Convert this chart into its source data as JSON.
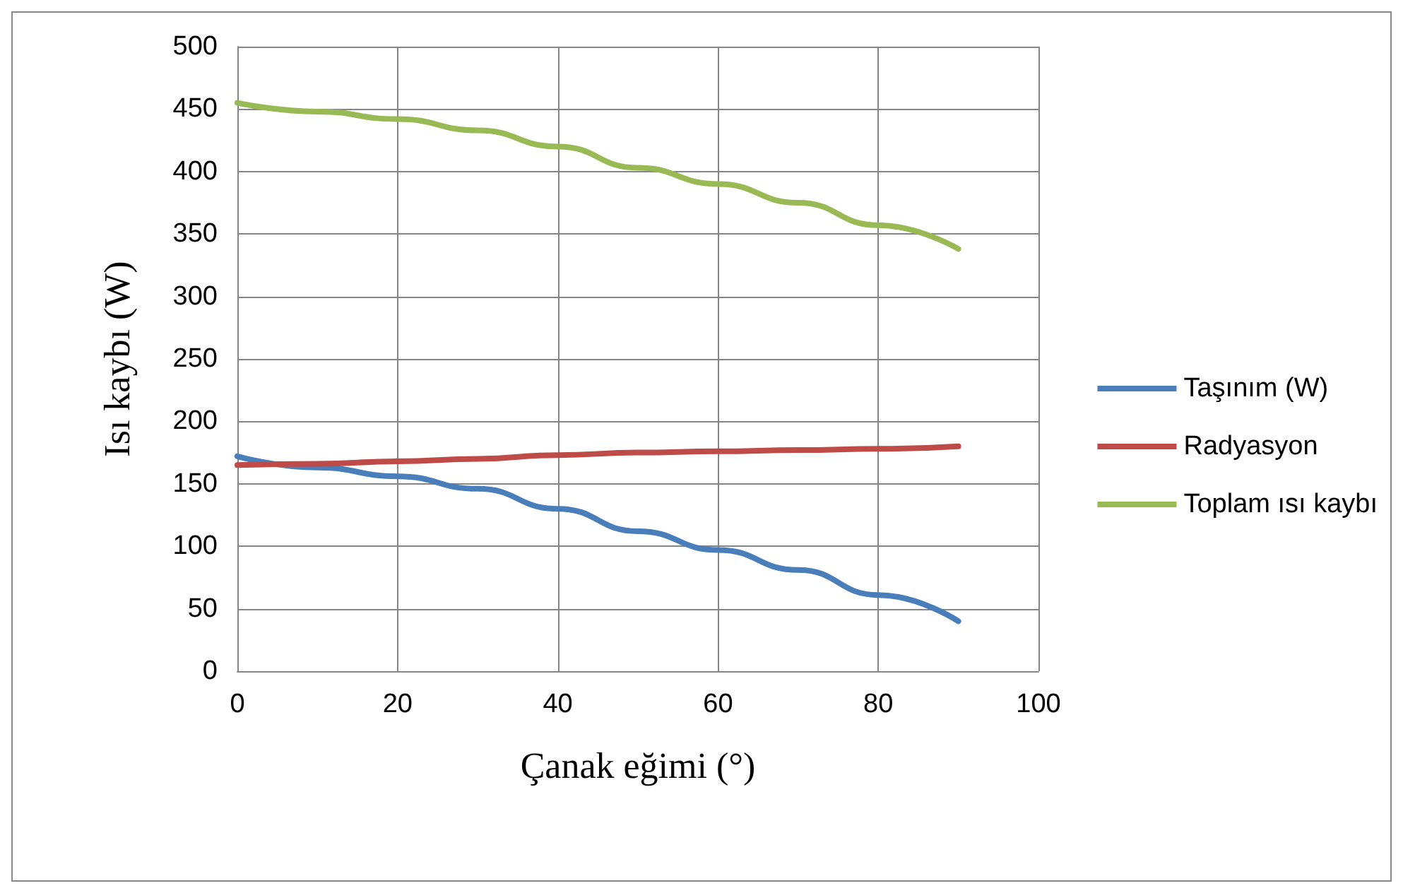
{
  "chart_data": {
    "type": "line",
    "xlabel": "Çanak eğimi (°)",
    "ylabel": "Isı kaybı (W)",
    "x": [
      0,
      10,
      20,
      30,
      40,
      50,
      60,
      70,
      80,
      90
    ],
    "series": [
      {
        "name": "Taşınım (W)",
        "color": "#4a7ebb",
        "values": [
          172,
          163,
          156,
          146,
          130,
          112,
          97,
          81,
          61,
          40
        ]
      },
      {
        "name": "Radyasyon",
        "color": "#be4b48",
        "values": [
          165,
          166,
          168,
          170,
          173,
          175,
          176,
          177,
          178,
          180
        ]
      },
      {
        "name": "Toplam ısı kaybı",
        "color": "#98b954",
        "values": [
          455,
          448,
          442,
          433,
          420,
          403,
          390,
          375,
          357,
          338
        ]
      }
    ],
    "xlim": [
      0,
      100
    ],
    "xticks": [
      0,
      20,
      40,
      60,
      80,
      100
    ],
    "ylim": [
      0,
      500
    ],
    "yticks": [
      0,
      50,
      100,
      150,
      200,
      250,
      300,
      350,
      400,
      450,
      500
    ],
    "grid": true,
    "legend": "right",
    "marker": "none",
    "line_style": "solid"
  }
}
